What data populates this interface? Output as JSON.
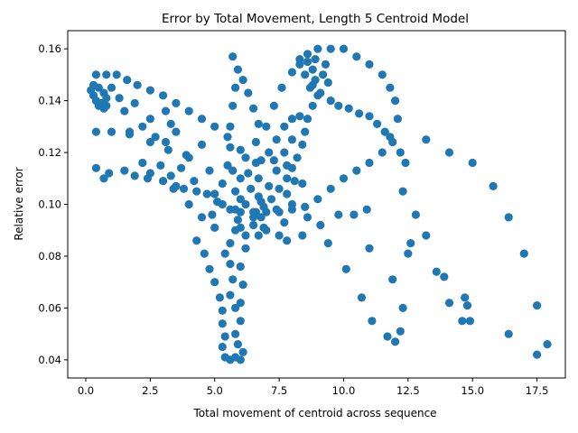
{
  "chart_data": {
    "type": "scatter",
    "title": "Error by Total Movement, Length 5 Centroid Model",
    "xlabel": "Total movement of centroid across sequence",
    "ylabel": "Relative error",
    "xlim": [
      -0.7,
      18.6
    ],
    "ylim": [
      0.033,
      0.167
    ],
    "xticks": [
      "0.0",
      "2.5",
      "5.0",
      "7.5",
      "10.0",
      "12.5",
      "15.0",
      "17.5"
    ],
    "xtick_values": [
      0,
      2.5,
      5,
      7.5,
      10,
      12.5,
      15,
      17.5
    ],
    "yticks": [
      "0.04",
      "0.06",
      "0.08",
      "0.10",
      "0.12",
      "0.14",
      "0.16"
    ],
    "ytick_values": [
      0.04,
      0.06,
      0.08,
      0.1,
      0.12,
      0.14,
      0.16
    ],
    "grid": false,
    "marker_color": "#1f77b4",
    "series": [
      {
        "points": [
          [
            0.2,
            0.144
          ],
          [
            0.3,
            0.142
          ],
          [
            0.4,
            0.14
          ],
          [
            0.5,
            0.145
          ],
          [
            0.6,
            0.139
          ],
          [
            0.7,
            0.143
          ],
          [
            0.8,
            0.141
          ],
          [
            0.5,
            0.138
          ],
          [
            0.3,
            0.146
          ],
          [
            0.7,
            0.137
          ],
          [
            0.4,
            0.15
          ],
          [
            0.8,
            0.15
          ],
          [
            1.2,
            0.15
          ],
          [
            1.6,
            0.148
          ],
          [
            2.0,
            0.146
          ],
          [
            2.5,
            0.144
          ],
          [
            3.0,
            0.142
          ],
          [
            3.5,
            0.139
          ],
          [
            4.0,
            0.136
          ],
          [
            4.5,
            0.133
          ],
          [
            5.0,
            0.13
          ],
          [
            5.5,
            0.126
          ],
          [
            6.0,
            0.121
          ],
          [
            0.8,
            0.138
          ],
          [
            1.5,
            0.136
          ],
          [
            2.5,
            0.133
          ],
          [
            3.5,
            0.128
          ],
          [
            4.5,
            0.123
          ],
          [
            5.5,
            0.115
          ],
          [
            6.0,
            0.11
          ],
          [
            0.4,
            0.128
          ],
          [
            1.0,
            0.128
          ],
          [
            1.7,
            0.127
          ],
          [
            2.5,
            0.124
          ],
          [
            3.2,
            0.121
          ],
          [
            4.0,
            0.118
          ],
          [
            4.8,
            0.113
          ],
          [
            5.3,
            0.108
          ],
          [
            6.0,
            0.102
          ],
          [
            0.4,
            0.114
          ],
          [
            0.7,
            0.11
          ],
          [
            0.9,
            0.112
          ],
          [
            1.5,
            0.113
          ],
          [
            2.5,
            0.112
          ],
          [
            3.3,
            0.111
          ],
          [
            4.2,
            0.109
          ],
          [
            5.0,
            0.104
          ],
          [
            5.8,
            0.098
          ],
          [
            6.5,
            0.095
          ],
          [
            3.5,
            0.107
          ],
          [
            4.0,
            0.1
          ],
          [
            4.5,
            0.095
          ],
          [
            5.0,
            0.091
          ],
          [
            6.0,
            0.091
          ],
          [
            6.5,
            0.092
          ],
          [
            7.0,
            0.09
          ],
          [
            7.5,
            0.088
          ],
          [
            7.8,
            0.086
          ],
          [
            4.3,
            0.086
          ],
          [
            4.6,
            0.081
          ],
          [
            4.8,
            0.075
          ],
          [
            5.0,
            0.07
          ],
          [
            5.2,
            0.064
          ],
          [
            5.3,
            0.059
          ],
          [
            5.3,
            0.054
          ],
          [
            5.4,
            0.049
          ],
          [
            5.3,
            0.045
          ],
          [
            5.4,
            0.041
          ],
          [
            5.6,
            0.04
          ],
          [
            5.8,
            0.041
          ],
          [
            6.0,
            0.04
          ],
          [
            6.1,
            0.043
          ],
          [
            5.9,
            0.046
          ],
          [
            5.8,
            0.05
          ],
          [
            6.0,
            0.055
          ],
          [
            5.8,
            0.06
          ],
          [
            5.6,
            0.065
          ],
          [
            5.7,
            0.071
          ],
          [
            5.6,
            0.077
          ],
          [
            5.4,
            0.081
          ],
          [
            5.6,
            0.085
          ],
          [
            5.8,
            0.09
          ],
          [
            6.0,
            0.076
          ],
          [
            6.2,
            0.083
          ],
          [
            6.1,
            0.069
          ],
          [
            6.0,
            0.062
          ],
          [
            5.7,
            0.157
          ],
          [
            5.9,
            0.152
          ],
          [
            6.1,
            0.148
          ],
          [
            6.3,
            0.143
          ],
          [
            6.5,
            0.137
          ],
          [
            6.7,
            0.131
          ],
          [
            6.6,
            0.124
          ],
          [
            6.8,
            0.117
          ],
          [
            6.7,
            0.11
          ],
          [
            6.7,
            0.103
          ],
          [
            6.6,
            0.097
          ],
          [
            5.8,
            0.145
          ],
          [
            5.7,
            0.138
          ],
          [
            5.6,
            0.13
          ],
          [
            5.6,
            0.122
          ],
          [
            5.7,
            0.113
          ],
          [
            5.8,
            0.105
          ],
          [
            6.0,
            0.097
          ],
          [
            7.0,
            0.13
          ],
          [
            7.3,
            0.138
          ],
          [
            7.6,
            0.145
          ],
          [
            8.0,
            0.151
          ],
          [
            8.3,
            0.156
          ],
          [
            8.6,
            0.158
          ],
          [
            9.0,
            0.16
          ],
          [
            9.5,
            0.16
          ],
          [
            10.0,
            0.16
          ],
          [
            10.5,
            0.157
          ],
          [
            11.0,
            0.154
          ],
          [
            11.5,
            0.15
          ],
          [
            11.8,
            0.145
          ],
          [
            12.0,
            0.14
          ],
          [
            12.1,
            0.133
          ],
          [
            11.8,
            0.126
          ],
          [
            11.5,
            0.12
          ],
          [
            11.0,
            0.116
          ],
          [
            10.5,
            0.113
          ],
          [
            10.0,
            0.11
          ],
          [
            9.5,
            0.106
          ],
          [
            9.0,
            0.102
          ],
          [
            8.5,
            0.099
          ],
          [
            8.0,
            0.098
          ],
          [
            7.5,
            0.097
          ],
          [
            7.0,
            0.097
          ],
          [
            6.8,
            0.095
          ],
          [
            8.3,
            0.154
          ],
          [
            8.5,
            0.15
          ],
          [
            8.8,
            0.146
          ],
          [
            9.0,
            0.142
          ],
          [
            8.8,
            0.138
          ],
          [
            8.6,
            0.133
          ],
          [
            8.5,
            0.128
          ],
          [
            8.4,
            0.123
          ],
          [
            8.2,
            0.118
          ],
          [
            8.0,
            0.114
          ],
          [
            7.8,
            0.11
          ],
          [
            7.5,
            0.106
          ],
          [
            7.2,
            0.102
          ],
          [
            6.9,
            0.099
          ],
          [
            6.5,
            0.097
          ],
          [
            6.2,
            0.1
          ],
          [
            6.4,
            0.106
          ],
          [
            6.3,
            0.112
          ],
          [
            6.2,
            0.118
          ],
          [
            8.8,
            0.152
          ],
          [
            8.9,
            0.148
          ],
          [
            9.2,
            0.15
          ],
          [
            9.4,
            0.147
          ],
          [
            8.7,
            0.145
          ],
          [
            9.1,
            0.143
          ],
          [
            8.6,
            0.155
          ],
          [
            8.9,
            0.156
          ],
          [
            9.3,
            0.154
          ],
          [
            7.4,
            0.125
          ],
          [
            7.7,
            0.13
          ],
          [
            8.0,
            0.133
          ],
          [
            8.3,
            0.134
          ],
          [
            8.0,
            0.125
          ],
          [
            7.7,
            0.12
          ],
          [
            7.4,
            0.113
          ],
          [
            7.1,
            0.107
          ],
          [
            6.8,
            0.101
          ],
          [
            9.5,
            0.14
          ],
          [
            9.8,
            0.138
          ],
          [
            10.2,
            0.137
          ],
          [
            10.6,
            0.135
          ],
          [
            11.0,
            0.134
          ],
          [
            11.3,
            0.131
          ],
          [
            11.6,
            0.128
          ],
          [
            11.9,
            0.124
          ],
          [
            12.2,
            0.12
          ],
          [
            12.4,
            0.116
          ],
          [
            13.2,
            0.125
          ],
          [
            14.1,
            0.12
          ],
          [
            15.0,
            0.116
          ],
          [
            15.8,
            0.107
          ],
          [
            16.4,
            0.095
          ],
          [
            17.0,
            0.081
          ],
          [
            17.5,
            0.061
          ],
          [
            17.9,
            0.046
          ],
          [
            17.5,
            0.042
          ],
          [
            16.4,
            0.05
          ],
          [
            14.9,
            0.055
          ],
          [
            14.6,
            0.055
          ],
          [
            14.1,
            0.062
          ],
          [
            14.8,
            0.061
          ],
          [
            14.7,
            0.064
          ],
          [
            13.9,
            0.072
          ],
          [
            13.6,
            0.074
          ],
          [
            13.2,
            0.088
          ],
          [
            12.8,
            0.096
          ],
          [
            12.3,
            0.105
          ],
          [
            12.6,
            0.085
          ],
          [
            12.5,
            0.081
          ],
          [
            12.3,
            0.06
          ],
          [
            11.9,
            0.071
          ],
          [
            12.2,
            0.051
          ],
          [
            11.7,
            0.049
          ],
          [
            12.0,
            0.047
          ],
          [
            11.1,
            0.055
          ],
          [
            10.7,
            0.064
          ],
          [
            10.1,
            0.075
          ],
          [
            11.0,
            0.083
          ],
          [
            10.9,
            0.098
          ],
          [
            10.4,
            0.096
          ],
          [
            9.8,
            0.096
          ],
          [
            9.4,
            0.085
          ],
          [
            9.1,
            0.092
          ],
          [
            8.6,
            0.095
          ],
          [
            8.4,
            0.088
          ],
          [
            1.0,
            0.145
          ],
          [
            1.3,
            0.141
          ],
          [
            1.9,
            0.139
          ],
          [
            3.1,
            0.136
          ],
          [
            3.3,
            0.131
          ],
          [
            2.2,
            0.13
          ],
          [
            1.7,
            0.128
          ],
          [
            2.7,
            0.126
          ],
          [
            3.1,
            0.124
          ],
          [
            3.9,
            0.119
          ],
          [
            2.2,
            0.116
          ],
          [
            2.9,
            0.115
          ],
          [
            3.7,
            0.114
          ],
          [
            1.9,
            0.111
          ],
          [
            2.4,
            0.11
          ],
          [
            3.0,
            0.109
          ],
          [
            3.4,
            0.106
          ],
          [
            3.8,
            0.106
          ],
          [
            4.3,
            0.105
          ],
          [
            4.7,
            0.104
          ],
          [
            5.1,
            0.101
          ],
          [
            4.9,
            0.096
          ],
          [
            7.1,
            0.12
          ],
          [
            6.6,
            0.116
          ],
          [
            7.3,
            0.117
          ],
          [
            7.8,
            0.115
          ],
          [
            8.1,
            0.109
          ],
          [
            8.4,
            0.108
          ],
          [
            7.8,
            0.104
          ],
          [
            8.0,
            0.1
          ],
          [
            7.4,
            0.098
          ],
          [
            7.7,
            0.093
          ],
          [
            6.9,
            0.091
          ],
          [
            6.7,
            0.088
          ],
          [
            6.2,
            0.088
          ],
          [
            5.9,
            0.094
          ],
          [
            5.6,
            0.098
          ],
          [
            5.3,
            0.1
          ]
        ]
      }
    ]
  }
}
